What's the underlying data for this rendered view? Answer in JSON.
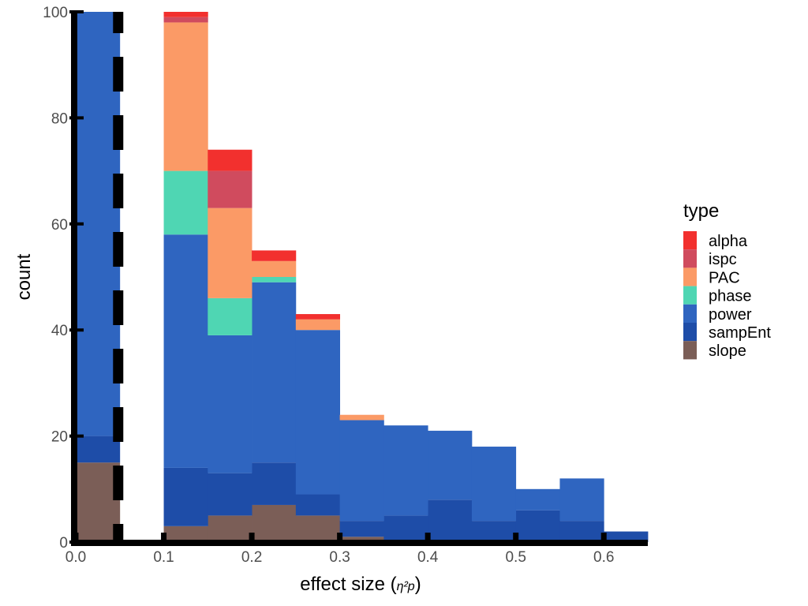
{
  "chart_data": {
    "type": "bar",
    "stacked": true,
    "bin_edges": [
      0.0,
      0.05,
      0.1,
      0.15,
      0.2,
      0.25,
      0.3,
      0.35,
      0.4,
      0.45,
      0.5,
      0.55,
      0.6,
      0.65
    ],
    "xlabel": "effect size (",
    "xlabel_sub": "η²p",
    "xlabel_end": ")",
    "ylabel": "count",
    "xlim": [
      0,
      0.65
    ],
    "ylim": [
      0,
      100
    ],
    "x_ticks": [
      "0.0",
      "0.1",
      "0.2",
      "0.3",
      "0.4",
      "0.5",
      "0.6"
    ],
    "y_ticks": [
      "0",
      "20",
      "40",
      "60",
      "80",
      "100"
    ],
    "reference_line": {
      "x": 0.05,
      "style": "dashed",
      "color": "#000000"
    },
    "legend": {
      "title": "type",
      "position": "right"
    },
    "series": [
      {
        "name": "slope",
        "color": "#7B5E57",
        "values": [
          15,
          0,
          3,
          5,
          7,
          5,
          1,
          0,
          0,
          0,
          0,
          0,
          0
        ]
      },
      {
        "name": "sampEnt",
        "color": "#1E4DA8",
        "values": [
          5,
          0,
          11,
          8,
          8,
          4,
          3,
          5,
          8,
          4,
          6,
          4,
          2
        ]
      },
      {
        "name": "power",
        "color": "#2F65C0",
        "values": [
          80,
          0,
          44,
          26,
          34,
          31,
          19,
          17,
          13,
          14,
          4,
          8,
          0
        ]
      },
      {
        "name": "phase",
        "color": "#4FD6B3",
        "values": [
          0,
          0,
          12,
          7,
          1,
          0,
          0,
          0,
          0,
          0,
          0,
          0,
          0
        ]
      },
      {
        "name": "PAC",
        "color": "#FB9A66",
        "values": [
          0,
          0,
          28,
          17,
          3,
          2,
          1,
          0,
          0,
          0,
          0,
          0,
          0
        ]
      },
      {
        "name": "ispc",
        "color": "#D04B5E",
        "values": [
          0,
          0,
          1,
          7,
          0,
          0,
          0,
          0,
          0,
          0,
          0,
          0,
          0
        ]
      },
      {
        "name": "alpha",
        "color": "#F2302E",
        "values": [
          0,
          0,
          1,
          4,
          2,
          1,
          0,
          0,
          0,
          0,
          0,
          0,
          0
        ]
      }
    ],
    "bins_0_05_overlap_note_removed": true
  }
}
